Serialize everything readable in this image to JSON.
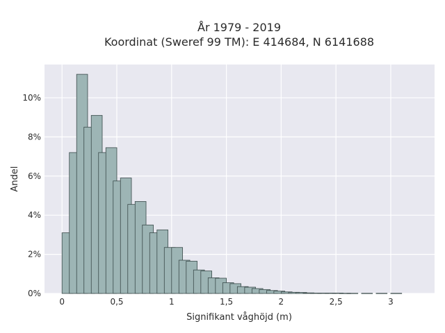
{
  "chart_data": {
    "type": "bar",
    "title_line1": "År 1979 - 2019",
    "title_line2": "Koordinat (Sweref 99 TM): E 414684, N 6141688",
    "xlabel": "Signifikant våghöjd (m)",
    "ylabel": "Andel",
    "xlim": [
      -0.16,
      3.4
    ],
    "ylim": [
      0,
      11.7
    ],
    "bin_width": 0.1,
    "x_ticks": [
      0,
      0.5,
      1,
      1.5,
      2,
      2.5,
      3
    ],
    "x_tick_labels": [
      "0",
      "0,5",
      "1",
      "1,5",
      "2",
      "2,5",
      "3"
    ],
    "y_ticks": [
      0,
      2,
      4,
      6,
      8,
      10
    ],
    "y_tick_labels": [
      "0%",
      "2%",
      "4%",
      "6%",
      "8%",
      "10%"
    ],
    "grid": true,
    "bar_color": "#9db5b5",
    "bar_edge_color": "#3a4a4a",
    "background_color": "#e8e8f0",
    "bins_start": [
      0,
      0.0667,
      0.1333,
      0.2,
      0.2667,
      0.3333,
      0.4,
      0.4667,
      0.5333,
      0.6,
      0.6667,
      0.7333,
      0.8,
      0.8667,
      0.9333,
      1.0,
      1.0667,
      1.1333,
      1.2,
      1.2667,
      1.3333,
      1.4,
      1.4667,
      1.5333,
      1.6,
      1.6667,
      1.7333,
      1.8,
      1.8667,
      1.9333,
      2.0,
      2.0667,
      2.1333,
      2.2,
      2.2667,
      2.3333,
      2.4,
      2.4667,
      2.5333,
      2.6,
      2.7333,
      2.8667,
      3.0
    ],
    "values": [
      3.1,
      7.2,
      11.2,
      8.5,
      9.1,
      7.2,
      7.45,
      5.75,
      5.9,
      4.55,
      4.7,
      3.5,
      3.1,
      3.25,
      2.35,
      2.35,
      1.7,
      1.65,
      1.2,
      1.15,
      0.8,
      0.78,
      0.55,
      0.5,
      0.35,
      0.32,
      0.25,
      0.2,
      0.15,
      0.12,
      0.08,
      0.06,
      0.05,
      0.03,
      0.02,
      0.02,
      0.02,
      0.02,
      0.01,
      0.01,
      0.01,
      0.01,
      0.01
    ]
  }
}
